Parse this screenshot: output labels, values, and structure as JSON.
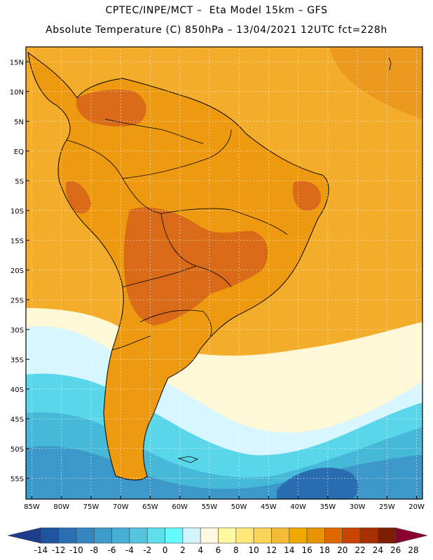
{
  "header": {
    "line1": "CPTEC/INPE/MCT –  Eta Model 15km – GFS",
    "line2": "Absolute Temperature (C) 850hPa – 13/04/2021 12UTC fct=228h"
  },
  "axes": {
    "lat_labels": [
      "15N",
      "10N",
      "5N",
      "EQ",
      "5S",
      "10S",
      "15S",
      "20S",
      "25S",
      "30S",
      "35S",
      "40S",
      "45S",
      "50S",
      "55S"
    ],
    "lat_values": [
      15,
      10,
      5,
      0,
      -5,
      -10,
      -15,
      -20,
      -25,
      -30,
      -35,
      -40,
      -45,
      -50,
      -55
    ],
    "lon_labels": [
      "85W",
      "80W",
      "75W",
      "70W",
      "65W",
      "60W",
      "55W",
      "50W",
      "45W",
      "40W",
      "35W",
      "30W",
      "25W",
      "20W"
    ],
    "lon_values": [
      -85,
      -80,
      -75,
      -70,
      -65,
      -60,
      -55,
      -50,
      -45,
      -40,
      -35,
      -30,
      -25,
      -20
    ]
  },
  "colorbar": {
    "labels": [
      "-14",
      "-12",
      "-10",
      "-8",
      "-6",
      "-4",
      "-2",
      "0",
      "2",
      "4",
      "6",
      "8",
      "10",
      "12",
      "14",
      "16",
      "18",
      "20",
      "22",
      "24",
      "26",
      "28"
    ],
    "colors": [
      "#1c3c8c",
      "#1f55a0",
      "#2a6fb4",
      "#3585c0",
      "#3d9cc8",
      "#45b0d4",
      "#55c4e0",
      "#5ddfee",
      "#66fbff",
      "#d2f5ff",
      "#fff8e0",
      "#fff8a0",
      "#fde879",
      "#fad35a",
      "#f4bc36",
      "#f0a800",
      "#e89300",
      "#e06800",
      "#c84400",
      "#a83000",
      "#7c1c00",
      "#8c0030"
    ]
  },
  "map": {
    "ocean_color": "#f3ad2a",
    "land_color": "#ee9a10",
    "hot_color": "#d86a18",
    "cool_band_colors": [
      "#fff8d6",
      "#d8f6ff",
      "#5ad6ea",
      "#46b8d8",
      "#3c98c8",
      "#2a6cb0"
    ]
  }
}
